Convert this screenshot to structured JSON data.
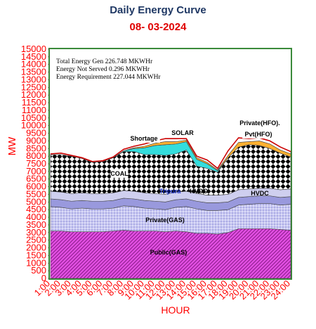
{
  "chart_data": {
    "type": "area",
    "title": "Daily Energy Curve",
    "subtitle": "08- 03-2024",
    "xlabel": "HOUR",
    "ylabel": "MW",
    "ylim": [
      0,
      15000
    ],
    "y_ticks": [
      0,
      500,
      1000,
      1500,
      2000,
      2500,
      3000,
      3500,
      4000,
      4500,
      5000,
      5500,
      6000,
      6500,
      7000,
      7500,
      8000,
      8500,
      9000,
      9500,
      10000,
      10500,
      11000,
      11500,
      12000,
      12500,
      13000,
      13500,
      14000,
      14500,
      15000
    ],
    "categories": [
      "1:00",
      "2:00",
      "3:00",
      "4:00",
      "5:00",
      "6:00",
      "7:00",
      "8:00",
      "9:00",
      "10:00",
      "11:00",
      "12:00",
      "13:00",
      "14:00",
      "15:00",
      "16:00",
      "17:00",
      "18:00",
      "19:00",
      "20:00",
      "21:00",
      "22:00",
      "23:00",
      "24:00"
    ],
    "stacking": "stacked",
    "series": [
      {
        "name": "Public(GAS)",
        "color": "#cc33cc",
        "pattern": "diagonal",
        "values": [
          3100,
          3100,
          3050,
          3050,
          3050,
          3050,
          3100,
          3150,
          3100,
          3100,
          3100,
          3050,
          3100,
          3050,
          2950,
          2950,
          2900,
          3000,
          3250,
          3250,
          3250,
          3250,
          3200,
          3150
        ]
      },
      {
        "name": "Private(GAS)",
        "color": "#b3b3ee",
        "pattern": "dots",
        "values": [
          1600,
          1550,
          1500,
          1550,
          1500,
          1500,
          1500,
          1600,
          1600,
          1500,
          1450,
          1450,
          1550,
          1650,
          1600,
          1500,
          1550,
          1500,
          1550,
          1600,
          1650,
          1650,
          1600,
          1700
        ]
      },
      {
        "name": "Tripura",
        "color": "#9999dd",
        "pattern": "solid",
        "values": [
          500,
          500,
          500,
          500,
          500,
          500,
          500,
          500,
          500,
          500,
          500,
          500,
          500,
          500,
          500,
          500,
          500,
          500,
          500,
          500,
          500,
          500,
          500,
          500
        ]
      },
      {
        "name": "HVDC",
        "color": "#cfcfef",
        "pattern": "solid",
        "values": [
          500,
          500,
          500,
          500,
          500,
          500,
          500,
          500,
          500,
          500,
          500,
          500,
          500,
          500,
          500,
          500,
          500,
          500,
          500,
          500,
          500,
          500,
          500,
          500
        ]
      },
      {
        "name": "COAL",
        "color": "#111111",
        "pattern": "checker",
        "values": [
          2400,
          2450,
          2450,
          2250,
          2050,
          2100,
          2300,
          2550,
          2600,
          2500,
          2550,
          2550,
          2500,
          2700,
          1800,
          1750,
          1500,
          2400,
          2800,
          2900,
          2800,
          2600,
          2400,
          2100
        ]
      },
      {
        "name": "SOLAR",
        "color": "#33dddd",
        "pattern": "solid",
        "values": [
          0,
          0,
          0,
          0,
          0,
          0,
          0,
          50,
          200,
          450,
          600,
          700,
          650,
          550,
          450,
          300,
          100,
          0,
          0,
          0,
          0,
          0,
          0,
          0
        ]
      },
      {
        "name": "Shortage",
        "color": "#ffff00",
        "pattern": "solid",
        "values": [
          0,
          0,
          0,
          0,
          0,
          0,
          0,
          0,
          0,
          0,
          0,
          0,
          0,
          0,
          0,
          0,
          0,
          0,
          0,
          0,
          0,
          0,
          0,
          0
        ]
      },
      {
        "name": "Private(HFO)",
        "color": "#ffb030",
        "pattern": "solid",
        "values": [
          0,
          0,
          0,
          0,
          0,
          0,
          0,
          0,
          50,
          100,
          150,
          200,
          150,
          100,
          100,
          100,
          50,
          150,
          300,
          200,
          300,
          300,
          200,
          200
        ]
      },
      {
        "name": "Private(HFO)",
        "color": "#ffffff",
        "pattern": "solid",
        "values": [
          50,
          100,
          50,
          50,
          50,
          50,
          50,
          100,
          100,
          150,
          150,
          200,
          200,
          100,
          100,
          150,
          100,
          300,
          300,
          200,
          200,
          200,
          200,
          150
        ]
      }
    ],
    "annotations": [
      "Total Energy Gen 226.748 MKWHr",
      "Energy Not Served  0.296 MKWHr",
      "Energy Requirement     227.044 MKWHr"
    ],
    "series_labels": [
      "Public(GAS)",
      "Private(GAS)",
      "Tripura",
      "HVDC",
      "HVDC",
      "COAL",
      "Shortage",
      "SOLAR",
      "Private(HFO).",
      "Pvt(HFO)"
    ],
    "colors": {
      "plot_border": "#3a8a3a",
      "axis_text": "#ff0000",
      "title": "#1f3864",
      "subtitle": "#e00000",
      "top_line": "#cc0000"
    },
    "grid": false,
    "legend": "none"
  }
}
